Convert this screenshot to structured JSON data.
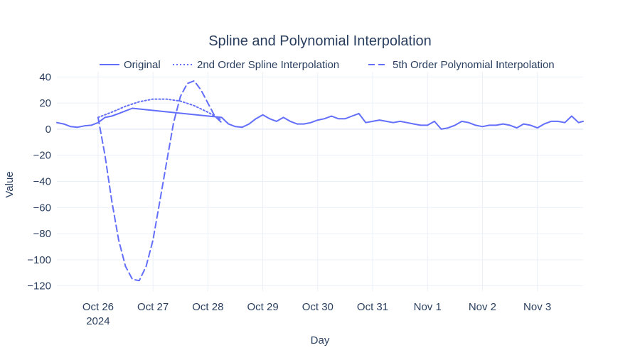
{
  "chart_data": {
    "type": "line",
    "title": "Spline and Polynomial Interpolation",
    "xlabel": "Day",
    "ylabel": "Value",
    "x_range": [
      "2024-10-25 06:00",
      "2024-11-03 20:00"
    ],
    "ylim": [
      -124,
      44
    ],
    "y_ticks": [
      40,
      20,
      0,
      -20,
      -40,
      -60,
      -80,
      -100,
      -120
    ],
    "y_tick_labels": [
      "40",
      "20",
      "0",
      "−20",
      "−40",
      "−60",
      "−80",
      "−100",
      "−120"
    ],
    "x_ticks": [
      {
        "x": "2024-10-26",
        "label": "Oct 26",
        "sublabel": "2024"
      },
      {
        "x": "2024-10-27",
        "label": "Oct 27",
        "sublabel": ""
      },
      {
        "x": "2024-10-28",
        "label": "Oct 28",
        "sublabel": ""
      },
      {
        "x": "2024-10-29",
        "label": "Oct 29",
        "sublabel": ""
      },
      {
        "x": "2024-10-30",
        "label": "Oct 30",
        "sublabel": ""
      },
      {
        "x": "2024-10-31",
        "label": "Oct 31",
        "sublabel": ""
      },
      {
        "x": "2024-11-01",
        "label": "Nov 1",
        "sublabel": ""
      },
      {
        "x": "2024-11-02",
        "label": "Nov 2",
        "sublabel": ""
      },
      {
        "x": "2024-11-03",
        "label": "Nov 3",
        "sublabel": ""
      }
    ],
    "grid": true,
    "legend_position": "top",
    "color": "#636efa",
    "series": [
      {
        "name": "Original",
        "dash": "solid",
        "x": [
          "2024-10-25 06:00",
          "2024-10-25 09:00",
          "2024-10-25 12:00",
          "2024-10-25 15:00",
          "2024-10-25 18:00",
          "2024-10-25 21:00",
          "2024-10-26 00:00",
          "2024-10-26 03:00",
          "2024-10-26 06:00",
          "2024-10-26 09:00",
          "2024-10-26 12:00",
          "2024-10-26 15:00",
          "2024-10-28 06:00",
          "2024-10-28 09:00",
          "2024-10-28 12:00",
          "2024-10-28 15:00",
          "2024-10-28 18:00",
          "2024-10-28 21:00",
          "2024-10-29 00:00",
          "2024-10-29 03:00",
          "2024-10-29 06:00",
          "2024-10-29 09:00",
          "2024-10-29 12:00",
          "2024-10-29 15:00",
          "2024-10-29 18:00",
          "2024-10-29 21:00",
          "2024-10-30 00:00",
          "2024-10-30 03:00",
          "2024-10-30 06:00",
          "2024-10-30 09:00",
          "2024-10-30 12:00",
          "2024-10-30 15:00",
          "2024-10-30 18:00",
          "2024-10-30 21:00",
          "2024-10-31 00:00",
          "2024-10-31 03:00",
          "2024-10-31 06:00",
          "2024-10-31 09:00",
          "2024-10-31 12:00",
          "2024-10-31 15:00",
          "2024-10-31 18:00",
          "2024-10-31 21:00",
          "2024-11-01 00:00",
          "2024-11-01 03:00",
          "2024-11-01 06:00",
          "2024-11-01 09:00",
          "2024-11-01 12:00",
          "2024-11-01 15:00",
          "2024-11-01 18:00",
          "2024-11-01 21:00",
          "2024-11-02 00:00",
          "2024-11-02 03:00",
          "2024-11-02 06:00",
          "2024-11-02 09:00",
          "2024-11-02 12:00",
          "2024-11-02 15:00",
          "2024-11-02 18:00",
          "2024-11-02 21:00",
          "2024-11-03 00:00",
          "2024-11-03 03:00",
          "2024-11-03 06:00",
          "2024-11-03 09:00",
          "2024-11-03 12:00",
          "2024-11-03 15:00",
          "2024-11-03 18:00",
          "2024-11-03 20:00"
        ],
        "y": [
          5,
          4,
          2,
          1.5,
          2.5,
          3,
          5,
          9,
          10,
          12,
          14,
          16,
          9,
          4,
          2,
          1.5,
          4,
          8,
          11,
          8,
          6,
          9,
          6,
          4,
          4,
          5,
          7,
          8,
          10,
          8,
          8,
          10,
          12,
          5,
          6,
          7,
          6,
          5,
          6,
          5,
          4,
          3,
          3,
          6,
          0,
          1,
          3,
          6,
          5,
          3,
          2,
          3,
          3,
          4,
          3,
          1,
          4,
          3,
          1,
          4,
          6,
          6,
          5,
          10,
          5,
          6
        ]
      },
      {
        "name": "2nd Order Spline Interpolation",
        "dash": "dot",
        "x": [
          "2024-10-26 00:00",
          "2024-10-26 06:00",
          "2024-10-26 12:00",
          "2024-10-26 18:00",
          "2024-10-27 00:00",
          "2024-10-27 06:00",
          "2024-10-27 12:00",
          "2024-10-27 18:00",
          "2024-10-28 00:00",
          "2024-10-28 06:00"
        ],
        "y": [
          9,
          13,
          17.5,
          21,
          23,
          23,
          21.5,
          18,
          13,
          7
        ]
      },
      {
        "name": "5th Order Polynomial Interpolation",
        "dash": "dash",
        "x": [
          "2024-10-26 00:00",
          "2024-10-26 03:00",
          "2024-10-26 06:00",
          "2024-10-26 09:00",
          "2024-10-26 12:00",
          "2024-10-26 15:00",
          "2024-10-26 18:00",
          "2024-10-26 21:00",
          "2024-10-27 00:00",
          "2024-10-27 03:00",
          "2024-10-27 06:00",
          "2024-10-27 09:00",
          "2024-10-27 12:00",
          "2024-10-27 15:00",
          "2024-10-27 18:00",
          "2024-10-27 21:00",
          "2024-10-28 00:00",
          "2024-10-28 03:00",
          "2024-10-28 06:00"
        ],
        "y": [
          9,
          -20,
          -55,
          -85,
          -105,
          -115,
          -116,
          -105,
          -85,
          -55,
          -25,
          5,
          25,
          35,
          37,
          30,
          20,
          10,
          5
        ]
      }
    ]
  }
}
